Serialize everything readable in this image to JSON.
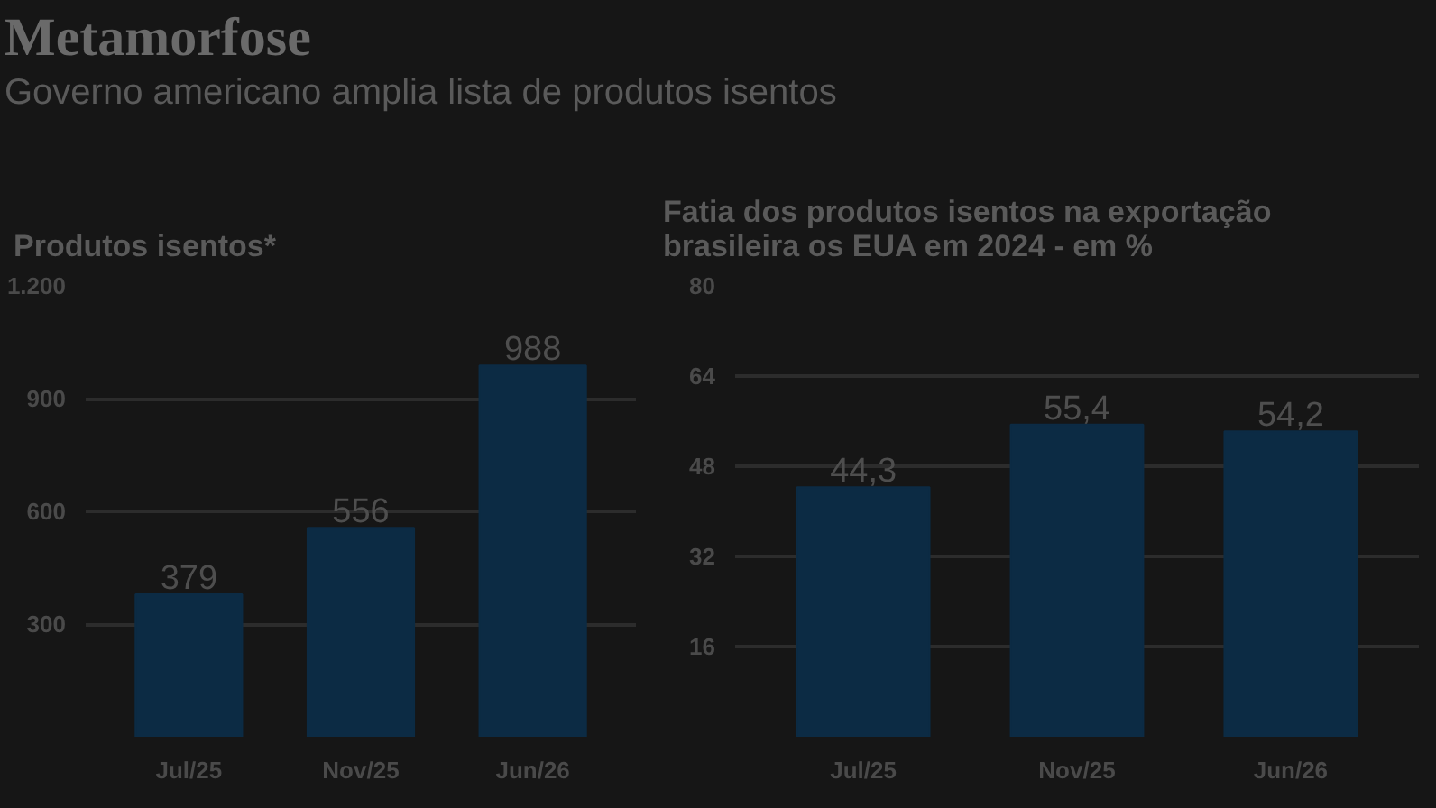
{
  "chart_data": [
    {
      "type": "bar",
      "title": "Produtos isentos*",
      "annotations": [
        "Metamorfose",
        "Governo americano amplia lista de produtos isentos"
      ],
      "categories": [
        "Jul/25",
        "Nov/25",
        "Jun/26"
      ],
      "values": [
        379,
        556,
        988
      ],
      "color": "#0c2b44",
      "ylim": [
        0,
        1200
      ],
      "yticks": [
        300,
        600,
        900,
        {
          "value": 1200,
          "label": "1.200"
        }
      ],
      "grid": "y",
      "data_labels": true
    },
    {
      "type": "bar",
      "title": "Fatia dos produtos isentos na exportação brasileira os EUA em 2024 - em %",
      "categories": [
        "Jul/25",
        "Nov/25",
        "Jun/26"
      ],
      "values": [
        44.3,
        55.4,
        54.2
      ],
      "value_labels": [
        "44,3",
        "55,4",
        "54,2"
      ],
      "color": "#0c2b44",
      "ylim": [
        0,
        80
      ],
      "yticks": [
        16,
        32,
        48,
        64,
        80
      ],
      "grid": "y"
    }
  ]
}
